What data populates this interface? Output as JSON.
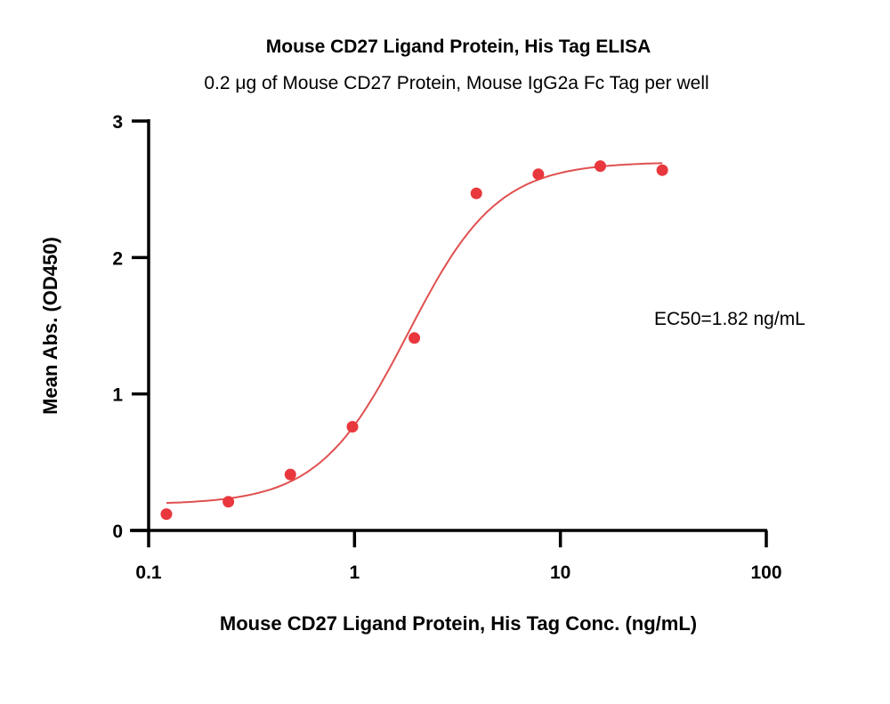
{
  "chart_data": {
    "type": "scatter",
    "title": "Mouse CD27 Ligand Protein, His Tag ELISA",
    "subtitle": "0.2 μg of Mouse CD27 Protein, Mouse IgG2a Fc Tag per well",
    "xlabel": "Mouse CD27 Ligand Protein, His Tag Conc. (ng/mL)",
    "ylabel": "Mean Abs. (OD450)",
    "x_scale": "log",
    "xlim": [
      0.1,
      100
    ],
    "ylim": [
      0,
      3
    ],
    "x_ticks": [
      "0.1",
      "1",
      "10",
      "100"
    ],
    "y_ticks": [
      "0",
      "1",
      "2",
      "3"
    ],
    "grid": false,
    "annotation": "EC50=1.82 ng/mL",
    "color": "#e8383d",
    "series": [
      {
        "x": [
          0.122,
          0.244,
          0.488,
          0.977,
          1.953,
          3.906,
          7.813,
          15.625,
          31.25
        ],
        "y": [
          0.12,
          0.21,
          0.41,
          0.76,
          1.41,
          2.47,
          2.61,
          2.67,
          2.64
        ]
      }
    ],
    "fit": {
      "model": "4PL",
      "bottom": 0.19,
      "top": 2.7,
      "ec50": 1.82,
      "hill": 2.0
    }
  }
}
